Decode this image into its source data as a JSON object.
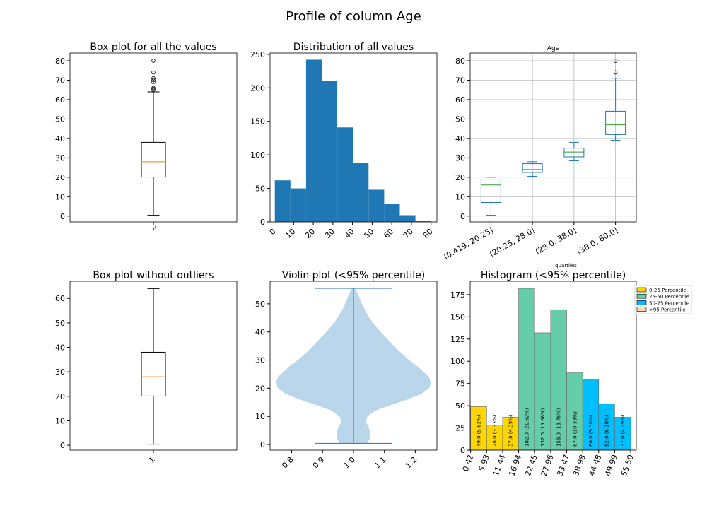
{
  "figure": {
    "title": "Profile of column  Age"
  },
  "chart_data": [
    {
      "type": "box",
      "title": "Box plot for all the values",
      "xticklabels": [
        "1"
      ],
      "ylim": [
        -3,
        84
      ],
      "yticks": [
        0,
        10,
        20,
        30,
        40,
        50,
        60,
        70,
        80
      ],
      "box": {
        "min": 0.42,
        "q1": 20.1,
        "median": 28,
        "q3": 38,
        "max": 64
      },
      "outliers": [
        65,
        65.5,
        66,
        69,
        70,
        71,
        74,
        80
      ]
    },
    {
      "type": "bar",
      "title": "Distribution of all values",
      "bins": [
        0.42,
        8.38,
        16.34,
        24.29,
        32.25,
        40.21,
        48.17,
        56.13,
        64.08,
        72.04,
        80.0
      ],
      "counts": [
        62,
        50,
        242,
        210,
        141,
        88,
        48,
        27,
        10,
        1
      ],
      "xlim": [
        -2,
        83
      ],
      "ylim": [
        0,
        252
      ],
      "xticks": [
        0,
        10,
        20,
        30,
        40,
        50,
        60,
        70,
        80
      ],
      "yticks": [
        0,
        50,
        100,
        150,
        200,
        250
      ],
      "color": "#1f77b4"
    },
    {
      "type": "box",
      "title": "Age",
      "xlabel": "quartiles",
      "grid": true,
      "categories": [
        "(0.419, 20.25]",
        "(20.25, 28.0]",
        "(28.0, 38.0]",
        "(38.0, 80.0]"
      ],
      "ylim": [
        -3,
        84
      ],
      "yticks": [
        0,
        10,
        20,
        30,
        40,
        50,
        60,
        70,
        80
      ],
      "boxes": [
        {
          "min": 0.42,
          "q1": 7,
          "median": 16,
          "q3": 19,
          "max": 20
        },
        {
          "min": 20.5,
          "q1": 22.5,
          "median": 24,
          "q3": 27,
          "max": 28
        },
        {
          "min": 28.5,
          "q1": 30.5,
          "median": 33,
          "q3": 35,
          "max": 38
        },
        {
          "min": 39,
          "q1": 42,
          "median": 47,
          "q3": 54,
          "max": 71,
          "outliers": [
            74,
            80
          ]
        }
      ]
    },
    {
      "type": "box",
      "title": "Box plot without outliers",
      "xticklabels": [
        "1"
      ],
      "ylim": [
        -2,
        67
      ],
      "yticks": [
        0,
        10,
        20,
        30,
        40,
        50,
        60
      ],
      "box": {
        "min": 0.42,
        "q1": 20.1,
        "median": 28,
        "q3": 38,
        "max": 64
      }
    },
    {
      "type": "violin",
      "title": "Violin plot (<95% percentile)",
      "xlim": [
        0.73,
        1.27
      ],
      "xticks": [
        0.8,
        0.9,
        1.0,
        1.1,
        1.2
      ],
      "xticklabels": [
        "0.8",
        "0.9",
        "1.0",
        "1.1",
        "1.2"
      ],
      "ylim": [
        -2,
        58
      ],
      "yticks": [
        0,
        10,
        20,
        30,
        40,
        50
      ],
      "extent": [
        0.42,
        55.5
      ],
      "profile": [
        [
          0.42,
          0.045
        ],
        [
          2,
          0.052
        ],
        [
          4,
          0.055
        ],
        [
          6,
          0.05
        ],
        [
          8,
          0.04
        ],
        [
          10,
          0.045
        ],
        [
          12,
          0.07
        ],
        [
          14,
          0.12
        ],
        [
          16,
          0.175
        ],
        [
          18,
          0.22
        ],
        [
          20,
          0.245
        ],
        [
          22,
          0.25
        ],
        [
          24,
          0.245
        ],
        [
          26,
          0.225
        ],
        [
          28,
          0.205
        ],
        [
          30,
          0.18
        ],
        [
          32,
          0.16
        ],
        [
          34,
          0.14
        ],
        [
          36,
          0.122
        ],
        [
          38,
          0.105
        ],
        [
          40,
          0.088
        ],
        [
          42,
          0.072
        ],
        [
          44,
          0.058
        ],
        [
          46,
          0.046
        ],
        [
          48,
          0.036
        ],
        [
          50,
          0.027
        ],
        [
          52,
          0.02
        ],
        [
          54,
          0.012
        ],
        [
          55.5,
          0.005
        ]
      ],
      "color": "#bad6ea",
      "line_color": "#1f77b4"
    },
    {
      "type": "bar",
      "title": "Histogram (<95% percentile)",
      "bins": [
        0.42,
        5.93,
        11.44,
        16.94,
        22.45,
        27.96,
        33.47,
        38.98,
        44.48,
        49.99,
        55.5
      ],
      "binlabels": [
        "0.42",
        "5.93",
        "11.44",
        "16.94",
        "22.45",
        "27.96",
        "33.47",
        "38.98",
        "44.48",
        "49.99",
        "55.50"
      ],
      "counts": [
        49,
        28,
        37,
        182,
        132,
        158,
        87,
        80,
        52,
        37
      ],
      "bar_labels": [
        "49.0  (5.82%)",
        "28.0  (3.33%)",
        "37.0  (4.39%)",
        "182.0  (21.62%)",
        "132.0  (15.68%)",
        "158.0  (18.76%)",
        "87.0  (10.33%)",
        "80.0  (9.50%)",
        "52.0  (6.18%)",
        "37.0  (4.39%)"
      ],
      "groups": [
        0,
        0,
        0,
        1,
        1,
        1,
        1,
        2,
        2,
        2
      ],
      "ylim": [
        0,
        190
      ],
      "yticks": [
        0,
        25,
        50,
        75,
        100,
        125,
        150,
        175
      ],
      "legend": {
        "placement": "upper-right-outside",
        "entries": [
          {
            "label": "0-25 Percentile",
            "color": "#ffd700"
          },
          {
            "label": "25-50 Percentile",
            "color": "#66cdaa"
          },
          {
            "label": "50-75 Percentile",
            "color": "#00bfff"
          },
          {
            "label": ">95 Percentile",
            "color": "#ffdab9"
          }
        ]
      }
    }
  ]
}
